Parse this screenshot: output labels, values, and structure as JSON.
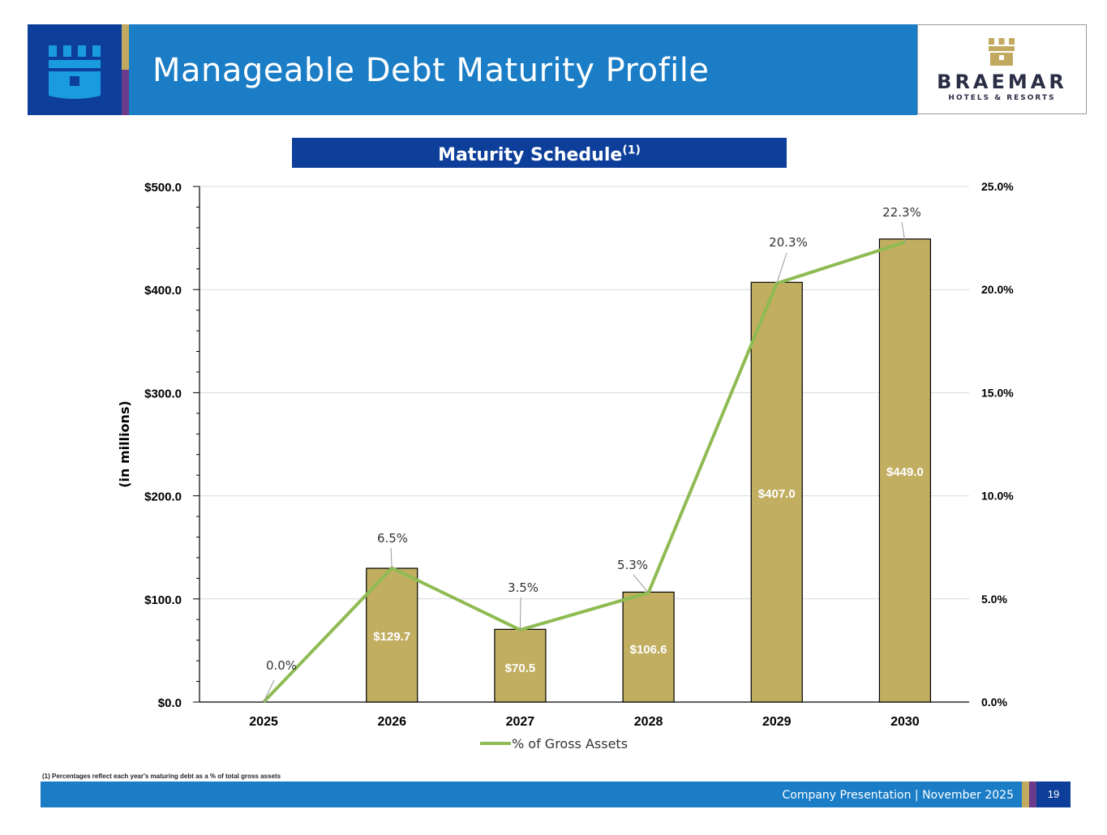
{
  "header": {
    "title": "Manageable Debt Maturity Profile",
    "brand_name": "BRAEMAR",
    "brand_sub": "HOTELS & RESORTS"
  },
  "chart_title": {
    "main": "Maturity Schedule",
    "sup": "(1)"
  },
  "chart_data": {
    "type": "bar",
    "categories": [
      "2025",
      "2026",
      "2027",
      "2028",
      "2029",
      "2030"
    ],
    "series": [
      {
        "name": "",
        "type": "bar",
        "values": [
          0.0,
          129.7,
          70.5,
          106.6,
          407.0,
          449.0
        ],
        "labels": [
          "",
          "$129.7",
          "$70.5",
          "$106.6",
          "$407.0",
          "$449.0"
        ],
        "color": "#c1ae61"
      },
      {
        "name": "% of Gross Assets",
        "type": "line",
        "axis": "right",
        "values": [
          0.0,
          6.5,
          3.5,
          5.3,
          20.3,
          22.3
        ],
        "labels": [
          "0.0%",
          "6.5%",
          "3.5%",
          "5.3%",
          "20.3%",
          "22.3%"
        ],
        "color": "#8fbb53"
      }
    ],
    "ylabel": "(in millions)",
    "ylim": [
      0,
      500
    ],
    "y_ticks": [
      "$0.0",
      "$100.0",
      "$200.0",
      "$300.0",
      "$400.0",
      "$500.0"
    ],
    "y2lim": [
      0,
      25
    ],
    "y2_ticks": [
      "0.0%",
      "5.0%",
      "10.0%",
      "15.0%",
      "20.0%",
      "25.0%"
    ],
    "grid": true,
    "legend": "bottom"
  },
  "footnote": "(1) Percentages reflect each year's maturing debt as a % of total gross assets",
  "footer": {
    "text": "Company Presentation | November 2025",
    "page": "19"
  },
  "colors": {
    "header_blue": "#1a7dc6",
    "dark_blue": "#0d3f9a",
    "gold": "#c1a95f",
    "purple": "#6a3a8b",
    "bar": "#c1ae61",
    "line": "#8fbb53"
  }
}
